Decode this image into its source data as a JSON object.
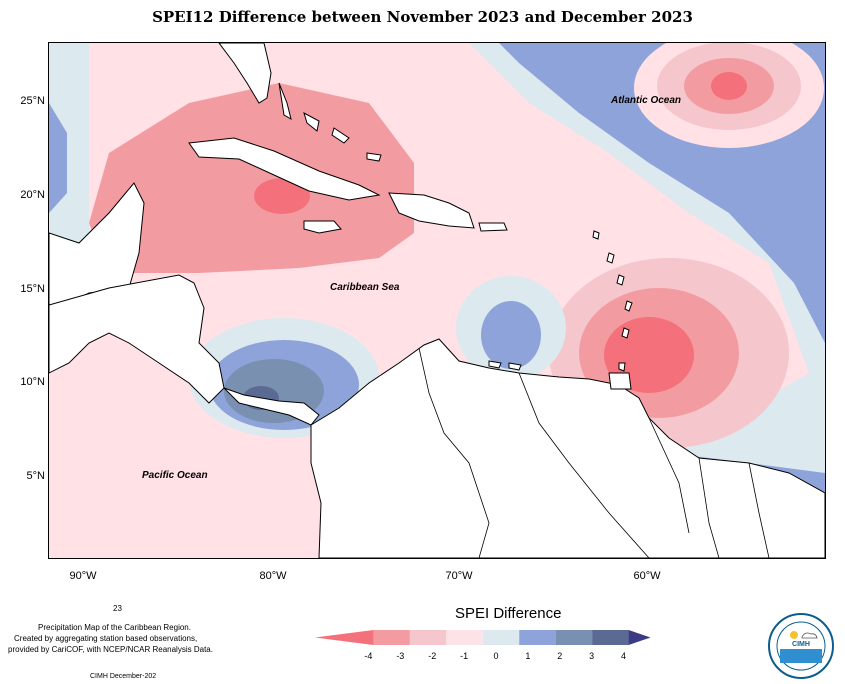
{
  "title": "SPEI12 Difference between November 2023 and December 2023",
  "axes": {
    "lat_labels": [
      "25°N",
      "20°N",
      "15°N",
      "10°N",
      "5°N"
    ],
    "lon_labels": [
      "90°W",
      "80°W",
      "70°W",
      "60°W"
    ]
  },
  "places": {
    "atlantic": "Atlantic Ocean",
    "caribbean": "Caribbean Sea",
    "pacific": "Pacific Ocean"
  },
  "credit": {
    "num": "23",
    "line1": "Precipitation Map of the Caribbean Region.",
    "line2": "Created by aggregating station based observations,",
    "line3": "provided by CariCOF, with NCEP/NCAR Reanalysis Data.",
    "footer": "CIMH December-202"
  },
  "legend": {
    "title": "SPEI Difference",
    "ticks": [
      "-4",
      "-3",
      "-2",
      "-1",
      "0",
      "1",
      "2",
      "3",
      "4"
    ],
    "colors": [
      "#f4707a",
      "#f29ca2",
      "#f5c6cb",
      "#fde3e7",
      "#dce9ef",
      "#8ea3d9",
      "#7a90b0",
      "#5a6a92",
      "#3b3a84"
    ]
  },
  "logo": {
    "text": "CIMH"
  }
}
